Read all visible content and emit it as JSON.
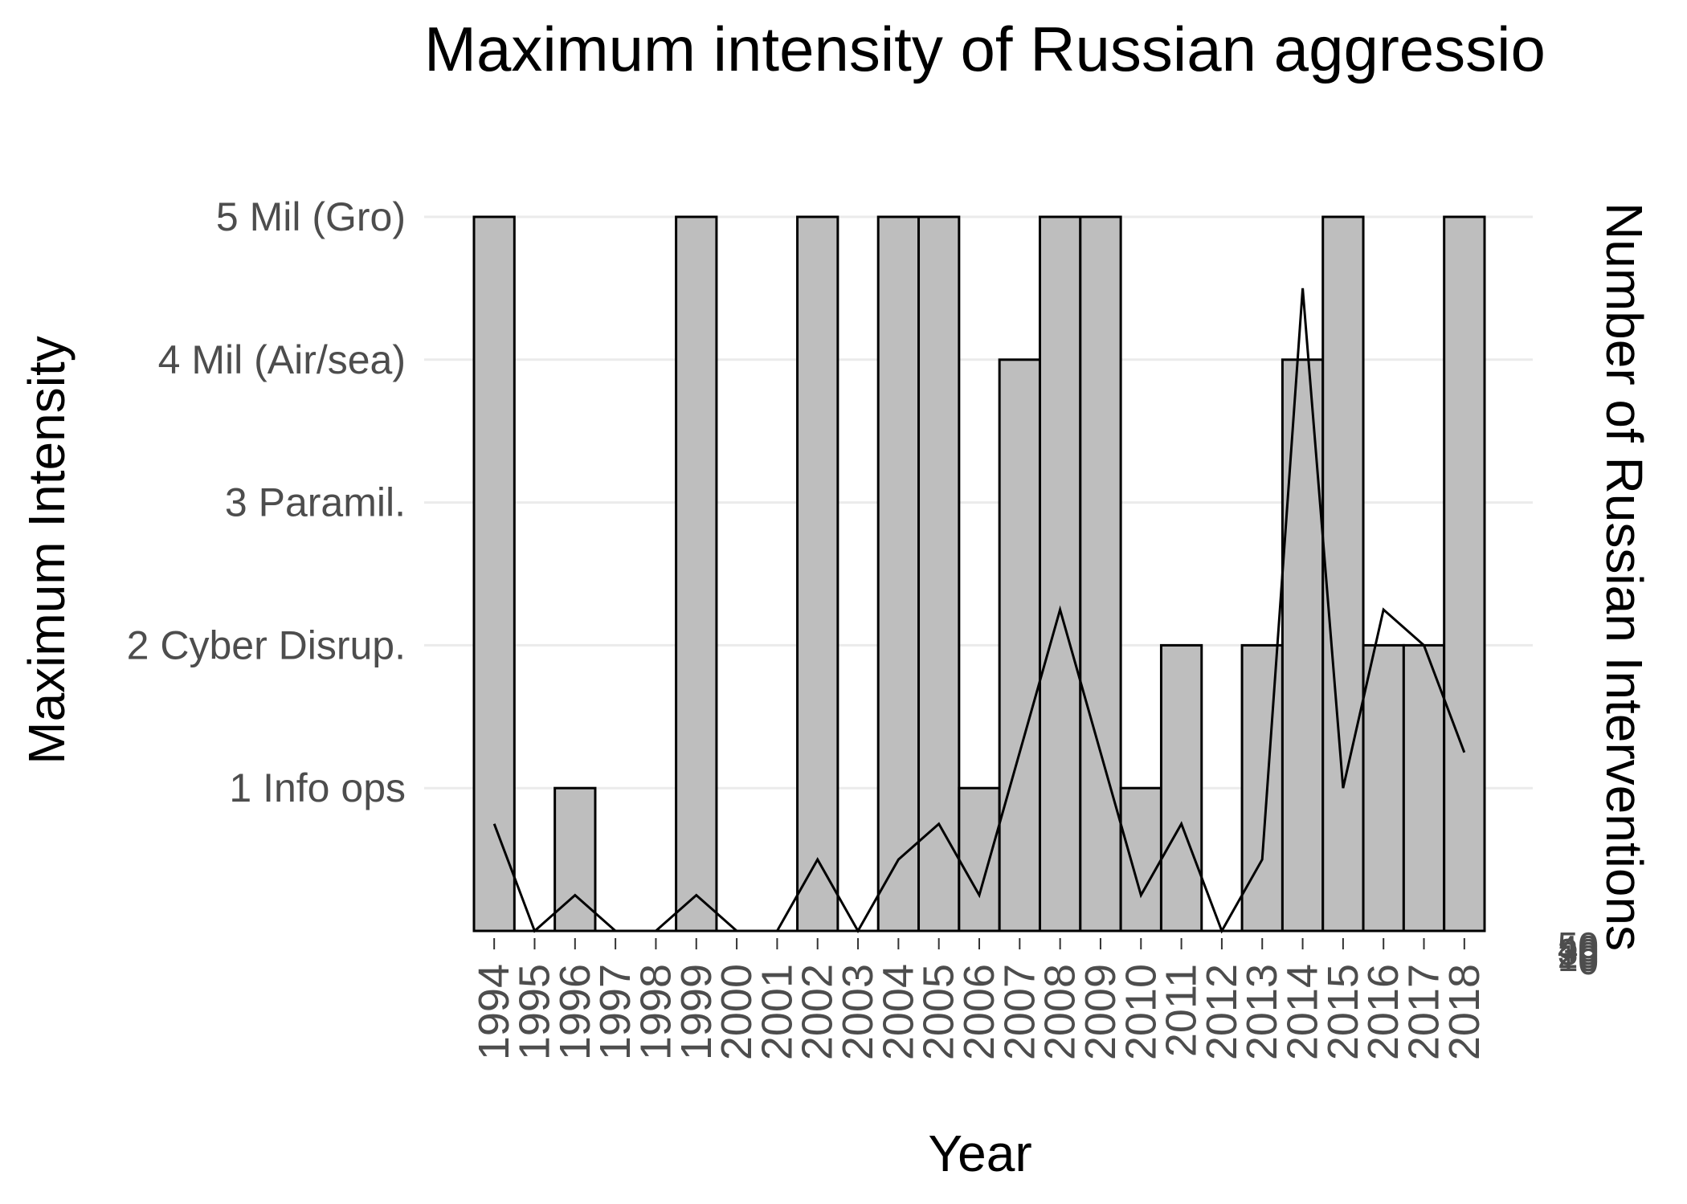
{
  "chart_data": {
    "type": "bar",
    "title": "Maximum intensity of Russian aggressio",
    "xlabel": "Year",
    "ylabel": "Maximum Intensity",
    "y2label": "Number of Russian Interventions",
    "categories": [
      "1994",
      "1995",
      "1996",
      "1997",
      "1998",
      "1999",
      "2000",
      "2001",
      "2002",
      "2003",
      "2004",
      "2005",
      "2006",
      "2007",
      "2008",
      "2009",
      "2010",
      "2011",
      "2012",
      "2013",
      "2014",
      "2015",
      "2016",
      "2017",
      "2018"
    ],
    "ylim": [
      0,
      5
    ],
    "ytick_values": [
      1,
      2,
      3,
      4,
      5
    ],
    "ytick_labels": [
      "1 Info ops",
      "2 Cyber Disrup.",
      "3 Paramil.",
      "4 Mil (Air/sea)",
      "5 Mil (Gro)"
    ],
    "y2tick_labels": [
      "0",
      "10",
      "20",
      "30",
      "40",
      "50"
    ],
    "grid": true,
    "legend": "none",
    "colors": {
      "bar_fill": "#bebebe",
      "bar_stroke": "#000000",
      "line": "#000000",
      "grid": "#ebebeb"
    },
    "series": [
      {
        "kind": "bar",
        "values": [
          5,
          0,
          1,
          0,
          0,
          5,
          0,
          0,
          5,
          0,
          5,
          5,
          1,
          4,
          5,
          5,
          1,
          2,
          0,
          2,
          4,
          5,
          2,
          2,
          5
        ]
      },
      {
        "kind": "line",
        "values": [
          0.75,
          0,
          0.25,
          0,
          0,
          0.25,
          0,
          0,
          0.5,
          0,
          0.5,
          0.75,
          0.25,
          1.25,
          2.25,
          1.25,
          0.25,
          0.75,
          0,
          0.5,
          4.5,
          1,
          2.25,
          2,
          1.25
        ]
      }
    ]
  }
}
